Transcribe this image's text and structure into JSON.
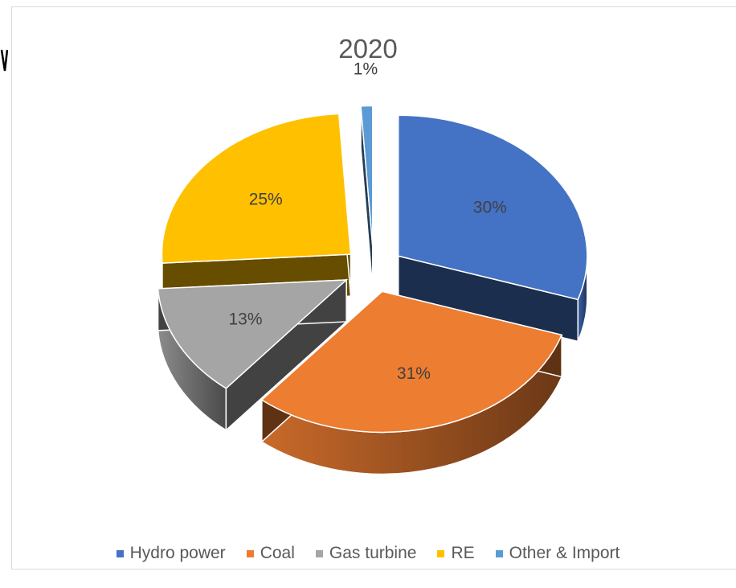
{
  "chart_data": {
    "type": "pie",
    "title": "2020",
    "style": "3d-exploded",
    "categories": [
      "Hydro power",
      "Coal",
      "Gas turbine",
      "RE",
      "Other & Import"
    ],
    "values": [
      30,
      31,
      13,
      25,
      1
    ],
    "labels": [
      "30%",
      "31%",
      "13%",
      "25%",
      "1%"
    ],
    "colors": [
      "#4472c4",
      "#ed7d31",
      "#a5a5a5",
      "#ffc000",
      "#5b9bd5"
    ],
    "legend_position": "bottom"
  }
}
